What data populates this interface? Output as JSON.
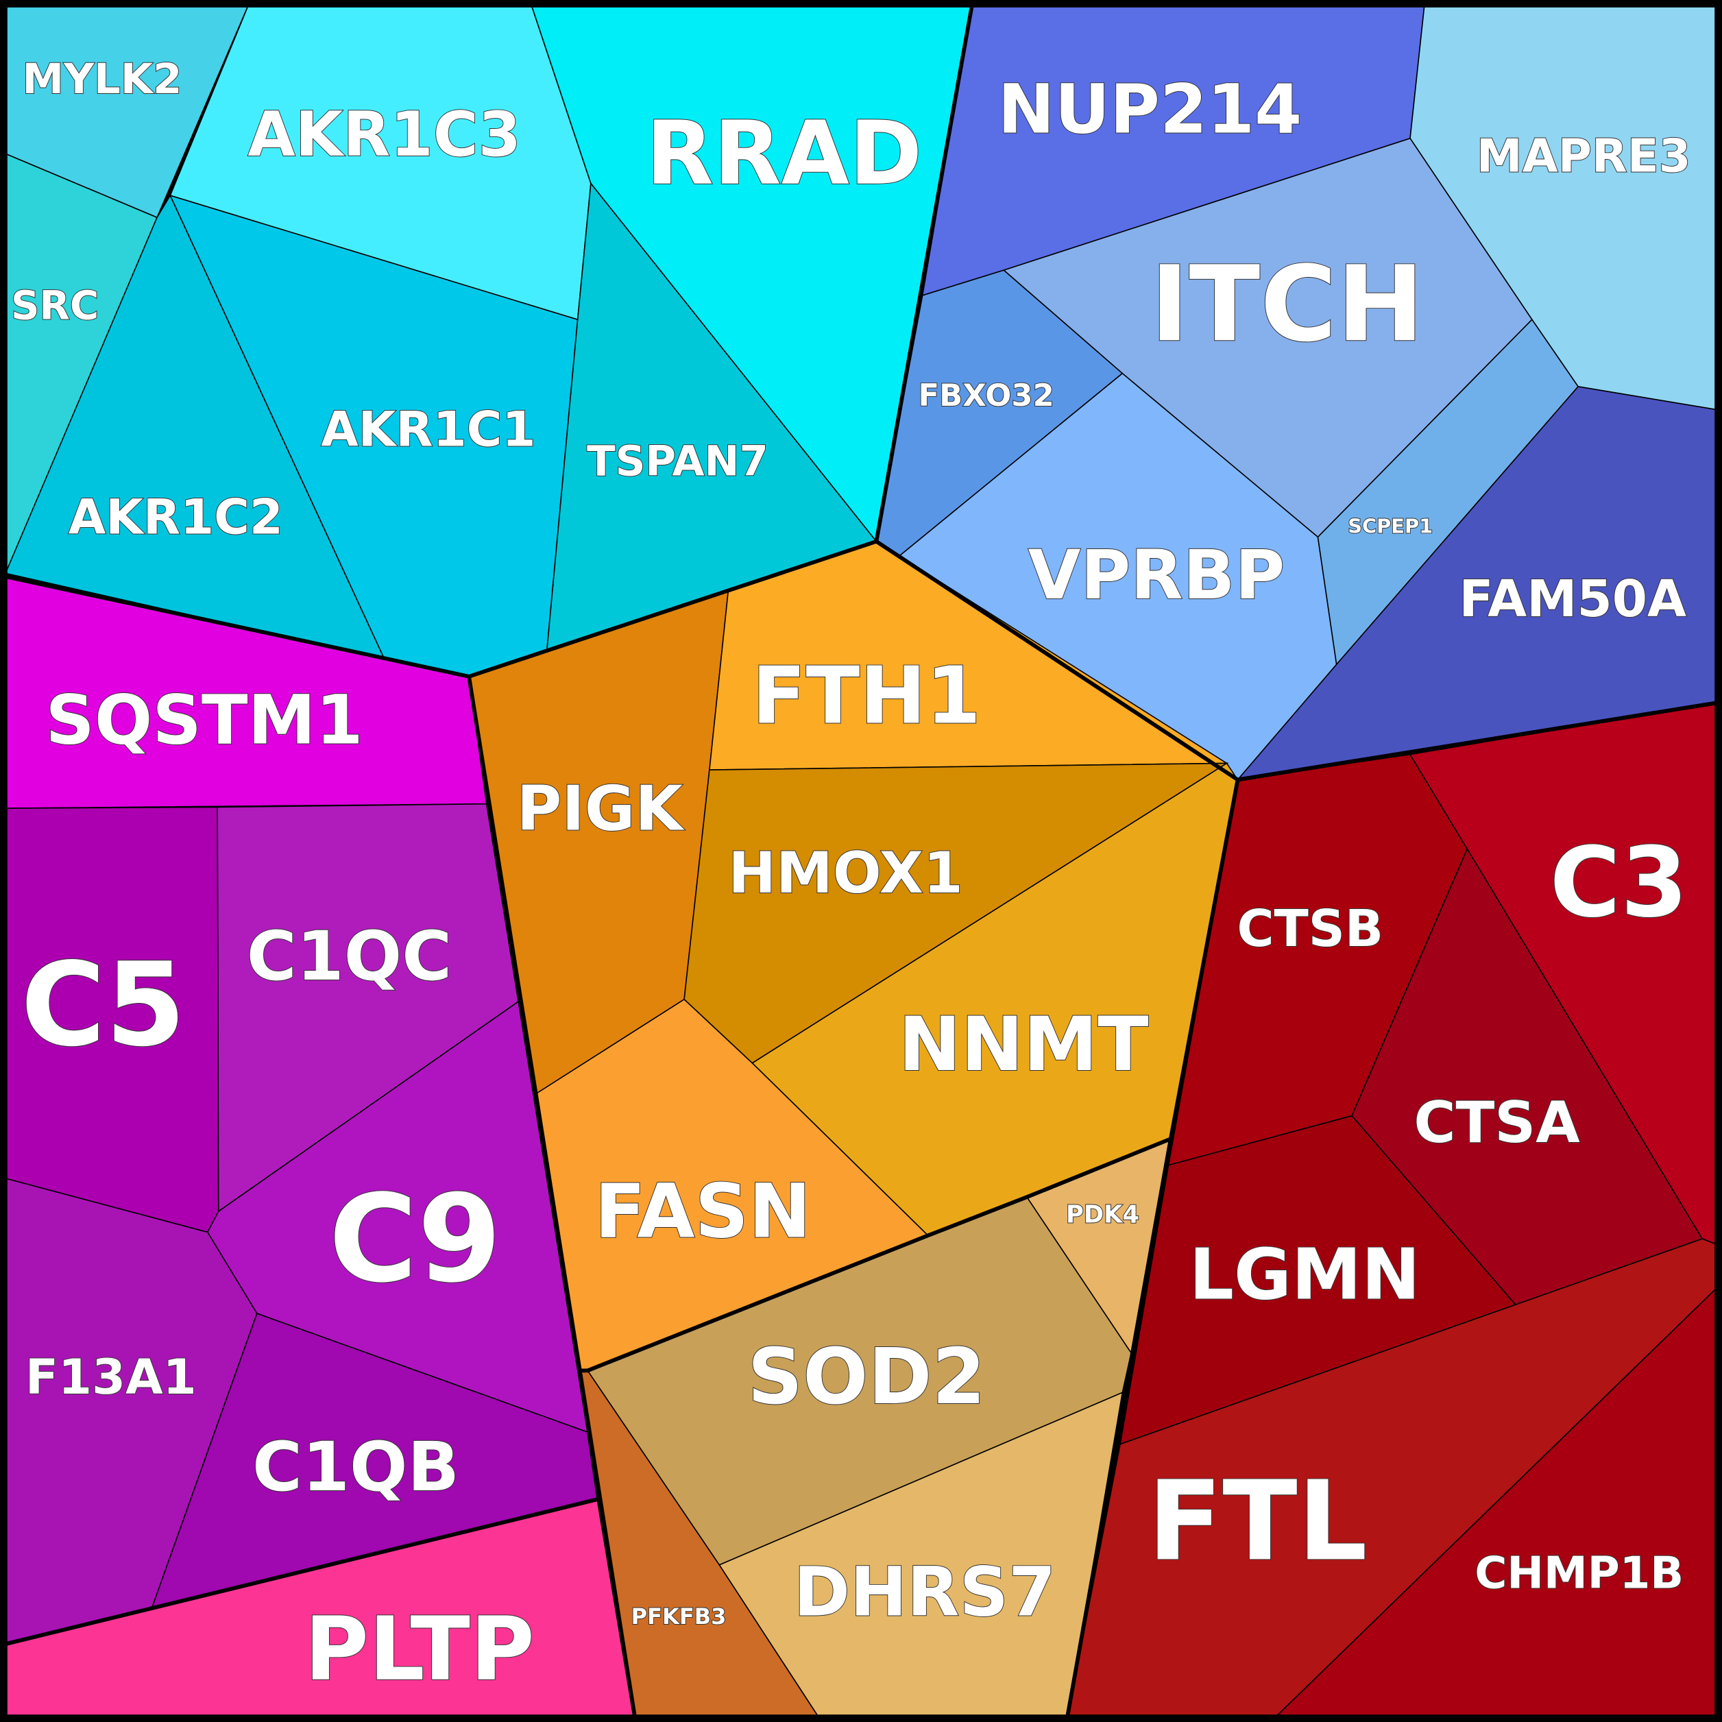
{
  "cells": [
    {
      "label": "MYLK2"
    },
    {
      "label": "SRC"
    },
    {
      "label": "AKR1C3"
    },
    {
      "label": "AKR1C2"
    },
    {
      "label": "AKR1C1"
    },
    {
      "label": "TSPAN7"
    },
    {
      "label": "RRAD"
    },
    {
      "label": "NUP214"
    },
    {
      "label": "MAPRE3"
    },
    {
      "label": "ITCH"
    },
    {
      "label": "FBXO32"
    },
    {
      "label": "VPRBP"
    },
    {
      "label": "SCPEP1"
    },
    {
      "label": "FAM50A"
    },
    {
      "label": "PIGK"
    },
    {
      "label": "FTH1"
    },
    {
      "label": "HMOX1"
    },
    {
      "label": "NNMT"
    },
    {
      "label": "FASN"
    },
    {
      "label": "PDK4"
    },
    {
      "label": "SOD2"
    },
    {
      "label": "DHRS7"
    },
    {
      "label": "PFKFB3"
    },
    {
      "label": "SQSTM1"
    },
    {
      "label": "C5"
    },
    {
      "label": "C1QC"
    },
    {
      "label": "C9"
    },
    {
      "label": "F13A1"
    },
    {
      "label": "C1QB"
    },
    {
      "label": "PLTP"
    },
    {
      "label": "CTSB"
    },
    {
      "label": "C3"
    },
    {
      "label": "CTSA"
    },
    {
      "label": "LGMN"
    },
    {
      "label": "FTL"
    },
    {
      "label": "CHMP1B"
    }
  ]
}
